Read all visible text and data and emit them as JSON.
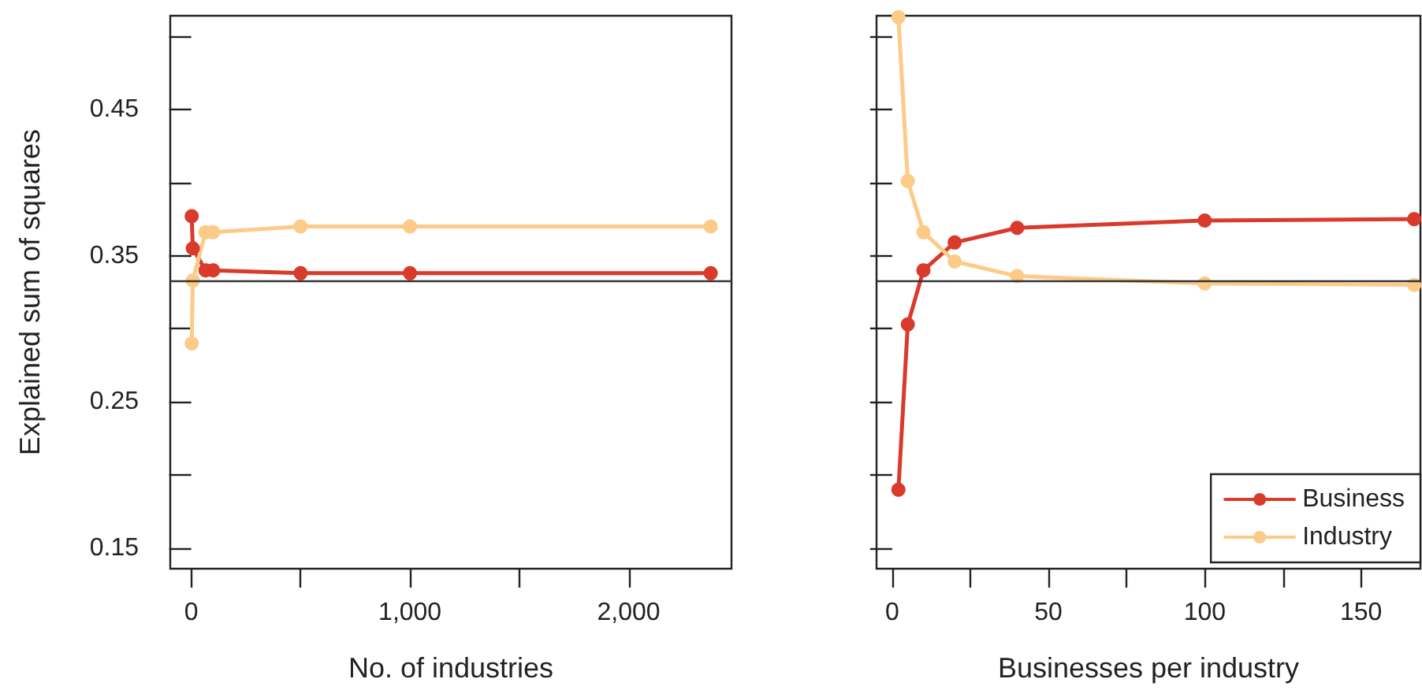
{
  "chart_data": [
    {
      "type": "line",
      "xlabel": "No. of industries",
      "ylabel": "Explained sum of squares",
      "x": [
        2,
        7,
        65,
        100,
        500,
        1000,
        2375
      ],
      "series": [
        {
          "color": "#d93a2b",
          "values": [
            0.377,
            0.355,
            0.34,
            0.34,
            0.338,
            0.338,
            0.338
          ]
        },
        {
          "color": "#fdcb88",
          "values": [
            0.29,
            0.333,
            0.366,
            0.366,
            0.37,
            0.37,
            0.37
          ]
        }
      ],
      "xlim": [
        -96,
        2470
      ],
      "xticks": [
        0,
        {
          "value": 500,
          "label": null
        },
        {
          "value": 1000,
          "label": "1,000"
        },
        {
          "value": 1500,
          "label": null
        },
        {
          "value": 2000,
          "label": "2,000"
        }
      ],
      "ylim": [
        0.136,
        0.514
      ],
      "yticks": [
        0.15,
        {
          "value": 0.2,
          "label": null
        },
        0.25,
        {
          "value": 0.3,
          "label": null
        },
        0.35,
        {
          "value": 0.4,
          "label": null
        },
        0.45,
        {
          "value": 0.5,
          "label": null
        }
      ],
      "ref_lines": [
        {
          "axis": "y",
          "value": 0.333,
          "color": "#333333"
        }
      ],
      "grid": false,
      "legend": false,
      "marker": "circle",
      "line_style": "solid"
    },
    {
      "type": "line",
      "xlabel": "Businesses per industry",
      "x": [
        2,
        5,
        10,
        20,
        40,
        100,
        167
      ],
      "series": [
        {
          "name": "Business",
          "color": "#d93a2b",
          "values": [
            0.19,
            0.303,
            0.34,
            0.359,
            0.369,
            0.374,
            0.375
          ]
        },
        {
          "name": "Industry",
          "color": "#fdcb88",
          "values": [
            0.513,
            0.401,
            0.366,
            0.346,
            0.336,
            0.331,
            0.33
          ]
        }
      ],
      "xlim": [
        -5,
        169
      ],
      "xticks": [
        0,
        {
          "value": 25,
          "label": null
        },
        50,
        {
          "value": 75,
          "label": null
        },
        100,
        {
          "value": 125,
          "label": null
        },
        150
      ],
      "ylim": [
        0.136,
        0.514
      ],
      "yticks": [
        0.15,
        0.2,
        0.25,
        0.3,
        0.35,
        0.4,
        0.45,
        0.5
      ],
      "tick_labels": "x",
      "ref_lines": [
        {
          "axis": "y",
          "value": 0.333,
          "color": "#333333"
        }
      ],
      "grid": false,
      "legend": "bottom right",
      "marker": "circle",
      "line_style": "solid"
    }
  ]
}
